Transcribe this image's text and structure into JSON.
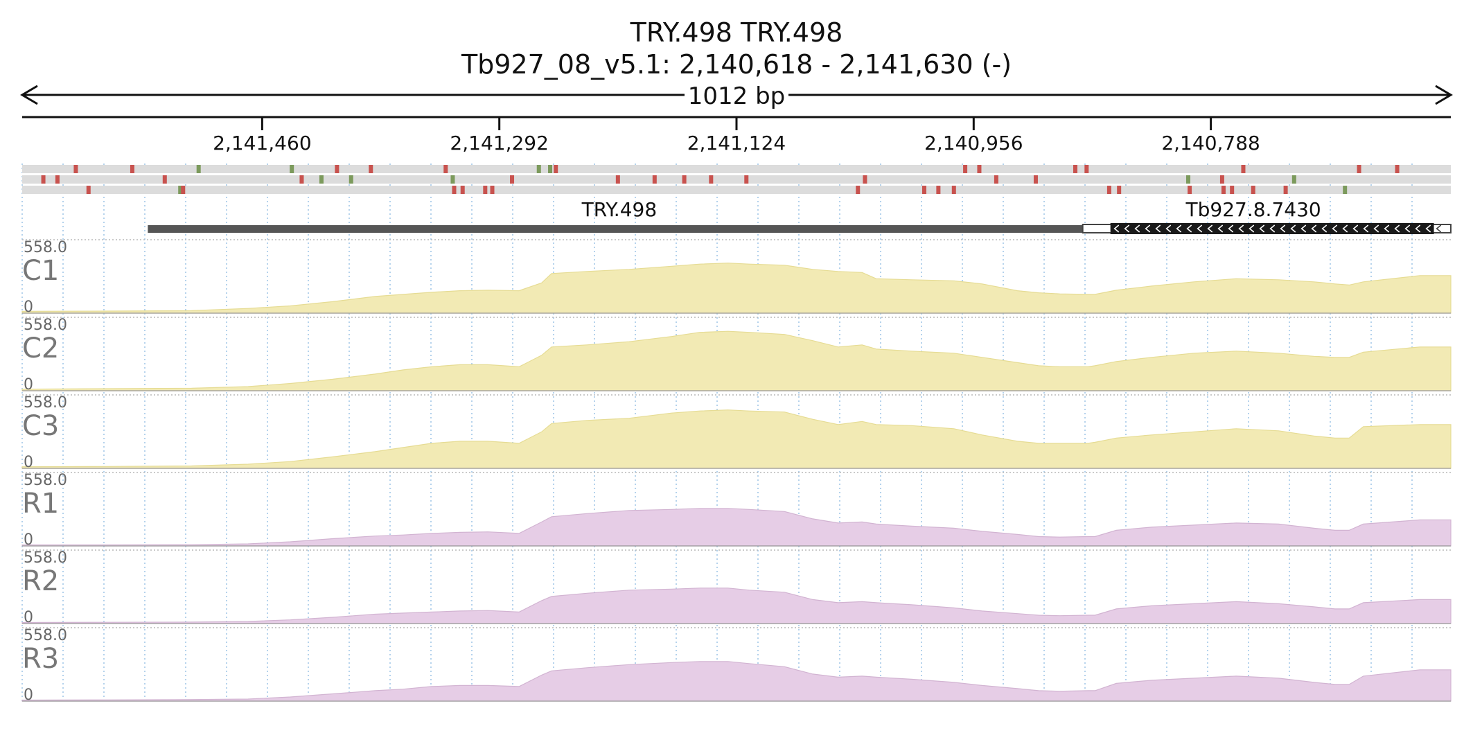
{
  "header": {
    "title": "TRY.498  TRY.498",
    "locus": "Tb927_08_v5.1: 2,140,618 - 2,141,630 (-)",
    "span_label": "1012 bp"
  },
  "ruler": {
    "ticks": [
      {
        "pos": 2141460,
        "label": "2,141,460"
      },
      {
        "pos": 2141292,
        "label": "2,141,292"
      },
      {
        "pos": 2141124,
        "label": "2,141,124"
      },
      {
        "pos": 2140956,
        "label": "2,140,956"
      },
      {
        "pos": 2140788,
        "label": "2,140,788"
      }
    ]
  },
  "colors": {
    "c_fill": "#f2eab4",
    "c_stroke": "#e6dc94",
    "r_fill": "#e6cde6",
    "r_stroke": "#d2b4d2",
    "variant_red": "#c8524e",
    "variant_green": "#7c9a5c",
    "feature_gray": "#555555",
    "feature_black": "#1a1a1a"
  },
  "features": [
    {
      "name": "TRY.498",
      "start": 2141541,
      "end": 2140873,
      "style": "thick"
    },
    {
      "name": "Tb927.8.7430",
      "start": 2140866,
      "end": 2140630,
      "style": "gene-minus"
    }
  ],
  "variant_rows": [
    [
      {
        "pos": 2141592,
        "c": "r"
      },
      {
        "pos": 2141552,
        "c": "r"
      },
      {
        "pos": 2141505,
        "c": "g"
      },
      {
        "pos": 2141439,
        "c": "g"
      },
      {
        "pos": 2141407,
        "c": "r"
      },
      {
        "pos": 2141383,
        "c": "r"
      },
      {
        "pos": 2141330,
        "c": "r"
      },
      {
        "pos": 2141264,
        "c": "g"
      },
      {
        "pos": 2141256,
        "c": "g"
      },
      {
        "pos": 2141252,
        "c": "r"
      },
      {
        "pos": 2140962,
        "c": "r"
      },
      {
        "pos": 2140952,
        "c": "r"
      },
      {
        "pos": 2140884,
        "c": "r"
      },
      {
        "pos": 2140876,
        "c": "r"
      },
      {
        "pos": 2140765,
        "c": "r"
      },
      {
        "pos": 2140683,
        "c": "r"
      },
      {
        "pos": 2140656,
        "c": "r"
      }
    ],
    [
      {
        "pos": 2141615,
        "c": "r"
      },
      {
        "pos": 2141605,
        "c": "r"
      },
      {
        "pos": 2141529,
        "c": "r"
      },
      {
        "pos": 2141432,
        "c": "r"
      },
      {
        "pos": 2141418,
        "c": "g"
      },
      {
        "pos": 2141397,
        "c": "g"
      },
      {
        "pos": 2141325,
        "c": "g"
      },
      {
        "pos": 2141283,
        "c": "r"
      },
      {
        "pos": 2141208,
        "c": "r"
      },
      {
        "pos": 2141182,
        "c": "r"
      },
      {
        "pos": 2141161,
        "c": "r"
      },
      {
        "pos": 2141142,
        "c": "r"
      },
      {
        "pos": 2141117,
        "c": "r"
      },
      {
        "pos": 2141033,
        "c": "r"
      },
      {
        "pos": 2140940,
        "c": "r"
      },
      {
        "pos": 2140912,
        "c": "r"
      },
      {
        "pos": 2140804,
        "c": "g"
      },
      {
        "pos": 2140780,
        "c": "r"
      },
      {
        "pos": 2140729,
        "c": "g"
      }
    ],
    [
      {
        "pos": 2141583,
        "c": "r"
      },
      {
        "pos": 2141518,
        "c": "g"
      },
      {
        "pos": 2141516,
        "c": "r"
      },
      {
        "pos": 2141324,
        "c": "r"
      },
      {
        "pos": 2141318,
        "c": "r"
      },
      {
        "pos": 2141302,
        "c": "r"
      },
      {
        "pos": 2141297,
        "c": "r"
      },
      {
        "pos": 2141038,
        "c": "r"
      },
      {
        "pos": 2140991,
        "c": "r"
      },
      {
        "pos": 2140981,
        "c": "r"
      },
      {
        "pos": 2140970,
        "c": "r"
      },
      {
        "pos": 2140860,
        "c": "r"
      },
      {
        "pos": 2140853,
        "c": "r"
      },
      {
        "pos": 2140803,
        "c": "r"
      },
      {
        "pos": 2140779,
        "c": "r"
      },
      {
        "pos": 2140773,
        "c": "r"
      },
      {
        "pos": 2140758,
        "c": "r"
      },
      {
        "pos": 2140735,
        "c": "r"
      },
      {
        "pos": 2140693,
        "c": "g"
      }
    ]
  ],
  "chart_data": {
    "type": "area",
    "title": "TRY.498  TRY.498",
    "subtitle": "Tb927_08_v5.1: 2,140,618 - 2,141,630 (-)",
    "x_unit": "bp",
    "xlim": [
      2141630,
      2140618
    ],
    "ylim": [
      0,
      558.0
    ],
    "x": [
      2141630,
      2141570,
      2141510,
      2141470,
      2141440,
      2141410,
      2141380,
      2141360,
      2141340,
      2141320,
      2141300,
      2141278,
      2141262,
      2141255,
      2141230,
      2141200,
      2141170,
      2141150,
      2141130,
      2141115,
      2141090,
      2141070,
      2141052,
      2141035,
      2141025,
      2141000,
      2140970,
      2140950,
      2140925,
      2140910,
      2140895,
      2140875,
      2140870,
      2140855,
      2140830,
      2140800,
      2140770,
      2140740,
      2140715,
      2140700,
      2140690,
      2140680,
      2140640,
      2140618
    ],
    "series": [
      {
        "name": "C1",
        "values": [
          18,
          20,
          24,
          45,
          70,
          110,
          160,
          180,
          200,
          215,
          220,
          215,
          290,
          380,
          400,
          420,
          450,
          470,
          480,
          470,
          460,
          420,
          400,
          390,
          330,
          320,
          310,
          280,
          215,
          195,
          185,
          180,
          180,
          220,
          260,
          300,
          330,
          320,
          300,
          280,
          270,
          300,
          360,
          360
        ]
      },
      {
        "name": "C2",
        "values": [
          15,
          20,
          24,
          40,
          70,
          110,
          160,
          200,
          230,
          250,
          250,
          230,
          340,
          420,
          440,
          470,
          520,
          560,
          570,
          560,
          540,
          480,
          420,
          440,
          400,
          380,
          360,
          320,
          270,
          240,
          230,
          230,
          240,
          280,
          320,
          360,
          380,
          360,
          330,
          320,
          320,
          370,
          420,
          420
        ]
      },
      {
        "name": "C3",
        "values": [
          15,
          18,
          23,
          40,
          65,
          110,
          160,
          200,
          240,
          260,
          260,
          240,
          350,
          430,
          460,
          480,
          530,
          550,
          560,
          550,
          540,
          470,
          420,
          450,
          420,
          410,
          380,
          320,
          260,
          240,
          240,
          240,
          250,
          290,
          320,
          350,
          380,
          360,
          310,
          290,
          290,
          400,
          420,
          420
        ]
      },
      {
        "name": "R1",
        "values": [
          10,
          10,
          12,
          20,
          40,
          70,
          95,
          105,
          120,
          130,
          135,
          120,
          230,
          280,
          310,
          340,
          350,
          360,
          360,
          350,
          330,
          260,
          220,
          230,
          210,
          190,
          170,
          140,
          110,
          90,
          85,
          90,
          90,
          150,
          180,
          200,
          220,
          210,
          170,
          150,
          150,
          210,
          250,
          250
        ]
      },
      {
        "name": "R2",
        "values": [
          10,
          12,
          14,
          20,
          35,
          60,
          90,
          100,
          110,
          120,
          125,
          110,
          220,
          260,
          290,
          320,
          330,
          340,
          340,
          320,
          300,
          230,
          200,
          210,
          200,
          180,
          150,
          120,
          95,
          80,
          75,
          80,
          80,
          140,
          170,
          190,
          210,
          190,
          160,
          140,
          140,
          200,
          230,
          230
        ]
      },
      {
        "name": "R3",
        "values": [
          10,
          12,
          15,
          20,
          40,
          70,
          100,
          115,
          140,
          150,
          150,
          140,
          250,
          290,
          320,
          350,
          370,
          380,
          380,
          360,
          330,
          260,
          230,
          240,
          230,
          210,
          180,
          150,
          120,
          100,
          95,
          100,
          100,
          170,
          200,
          220,
          240,
          220,
          180,
          160,
          160,
          240,
          300,
          300
        ]
      }
    ]
  }
}
